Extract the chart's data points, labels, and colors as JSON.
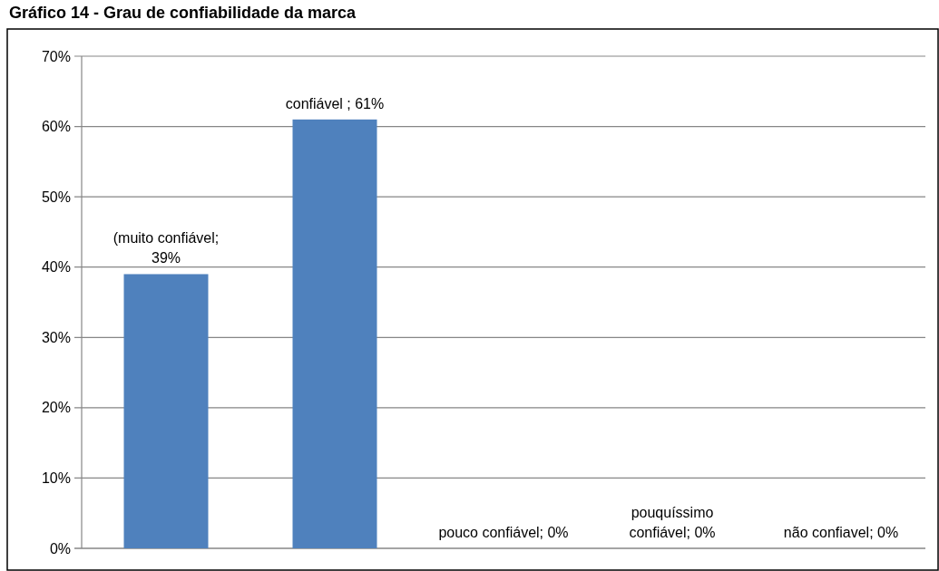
{
  "chart_data": {
    "type": "bar",
    "title": "Gráfico 14 - Grau de confiabilidade da marca",
    "categories": [
      null,
      null,
      null,
      null,
      null
    ],
    "values": [
      39,
      61,
      0,
      0,
      0
    ],
    "value_labels": [
      "(muito confiável; 39%",
      "confiável ; 61%",
      "pouco confiável; 0%",
      "pouquíssimo confiável; 0%",
      "não confiavel; 0%"
    ],
    "color": "#4f81bd",
    "ylim": [
      0,
      70
    ],
    "yticks": [
      {
        "value": 0,
        "label": "0%"
      },
      {
        "value": 10,
        "label": "10%"
      },
      {
        "value": 20,
        "label": "20%"
      },
      {
        "value": 30,
        "label": "30%"
      },
      {
        "value": 40,
        "label": "40%"
      },
      {
        "value": 50,
        "label": "50%"
      },
      {
        "value": 60,
        "label": "60%"
      },
      {
        "value": 70,
        "label": "70%"
      }
    ],
    "grid": "y"
  }
}
